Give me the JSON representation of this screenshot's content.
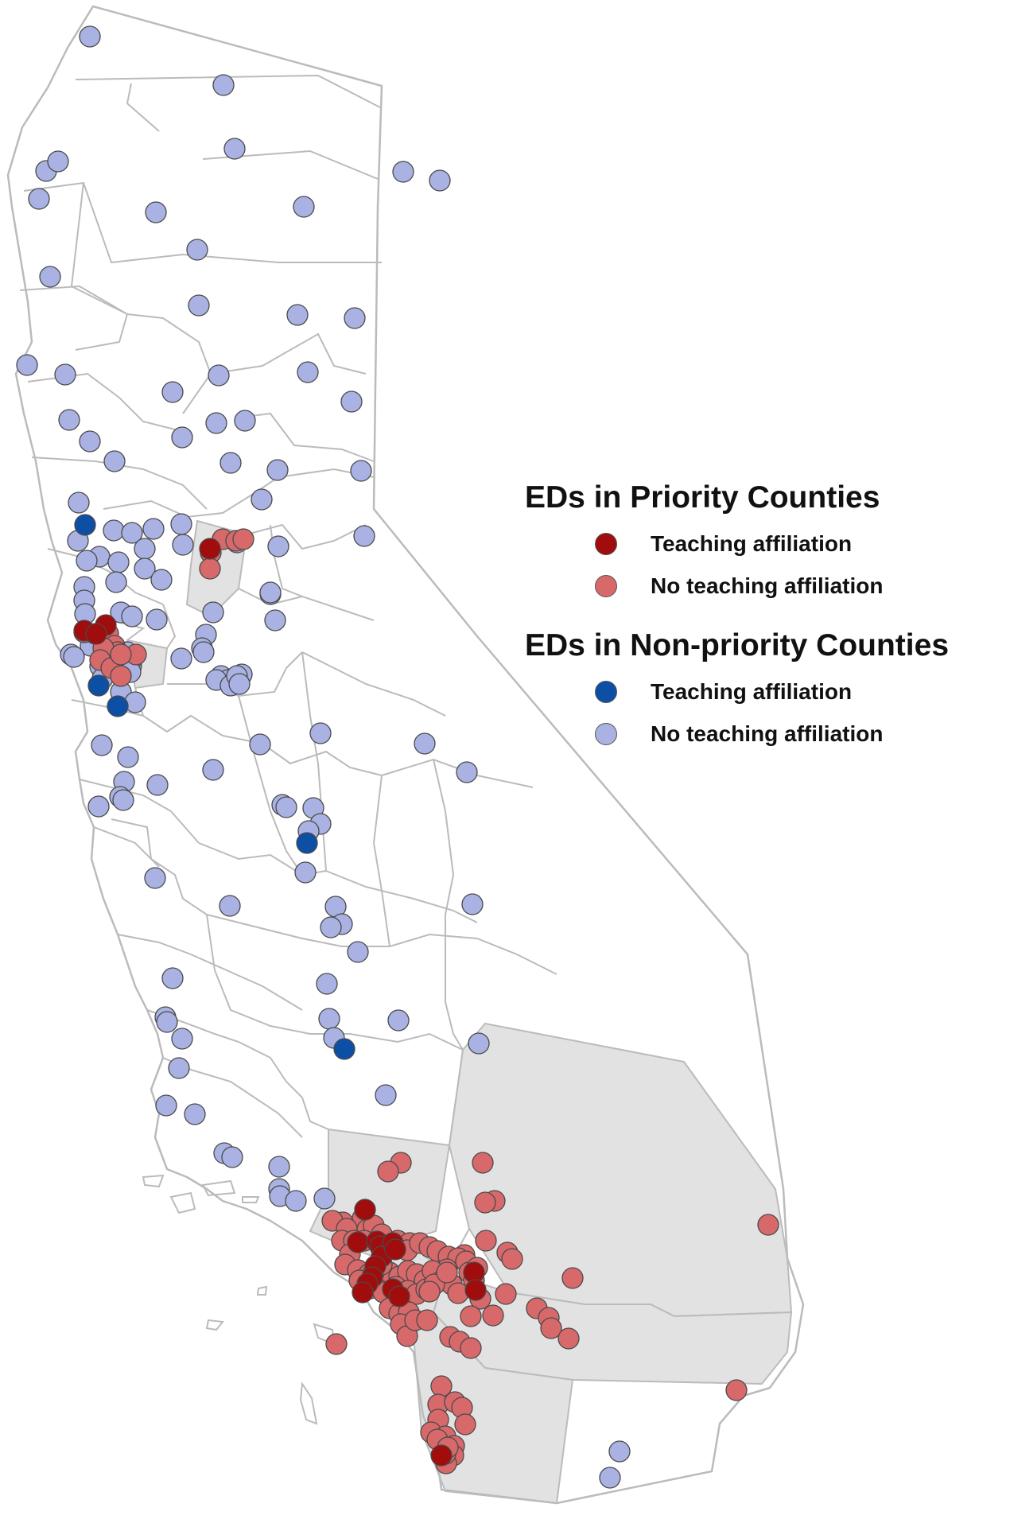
{
  "colors": {
    "priority_teaching": "#A10C0C",
    "priority_no_teaching": "#D8696B",
    "nonpriority_teaching": "#0E4FA6",
    "nonpriority_no_teaching": "#A9B2E2",
    "priority_county_fill": "#E2E2E2",
    "county_border": "#BBBBBB"
  },
  "legend": {
    "priority_title": "EDs in Priority Counties",
    "priority_items": [
      {
        "label": "Teaching affiliation",
        "color_key": "priority_teaching"
      },
      {
        "label": "No teaching affiliation",
        "color_key": "priority_no_teaching"
      }
    ],
    "nonpriority_title": "EDs in Non-priority Counties",
    "nonpriority_items": [
      {
        "label": "Teaching affiliation",
        "color_key": "nonpriority_teaching"
      },
      {
        "label": "No teaching affiliation",
        "color_key": "nonpriority_no_teaching"
      }
    ]
  }
}
